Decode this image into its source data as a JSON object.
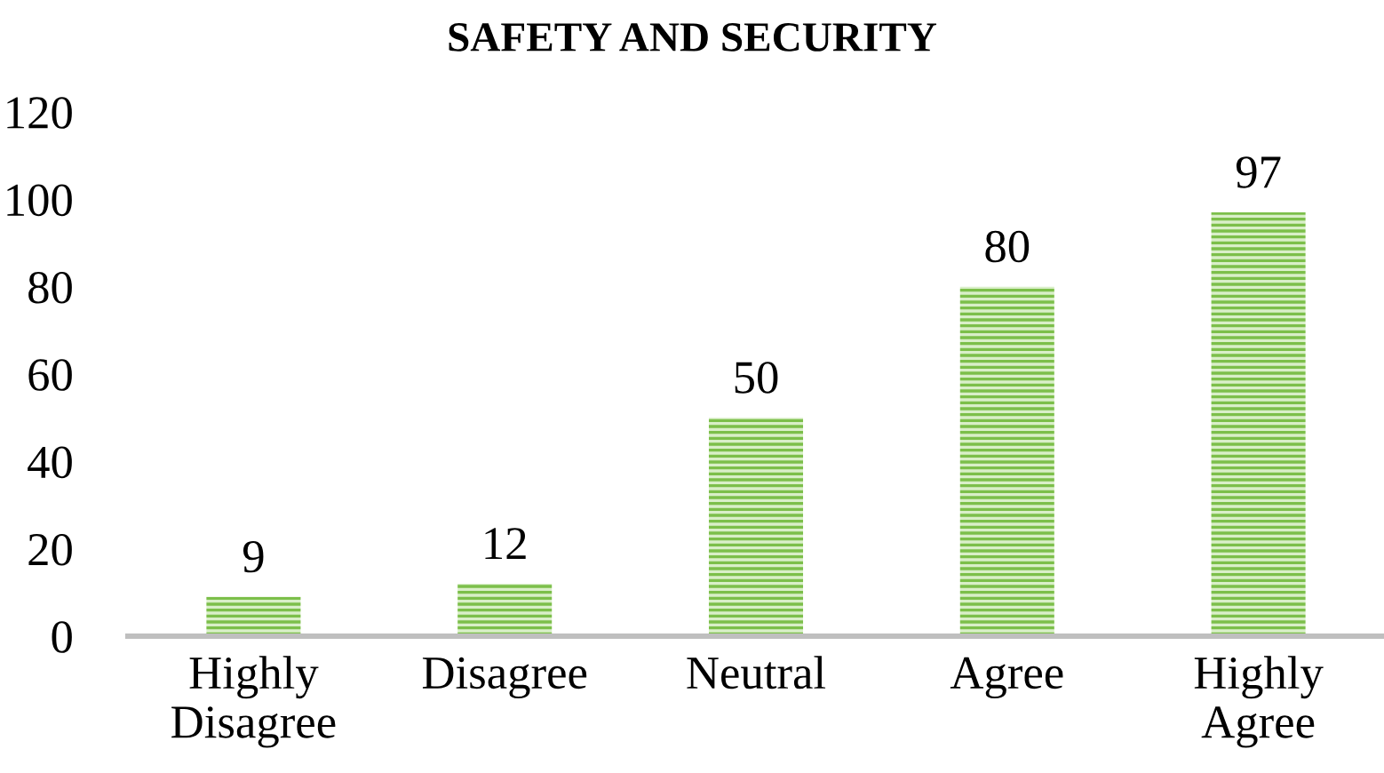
{
  "chart_data": {
    "type": "bar",
    "title": "SAFETY AND SECURITY",
    "categories": [
      "Highly\nDisagree",
      "Disagree",
      "Neutral",
      "Agree",
      "Highly\nAgree"
    ],
    "values": [
      9,
      12,
      50,
      80,
      97
    ],
    "color": "#7cbf4a",
    "ylim": [
      0,
      120
    ],
    "yticks": [
      0,
      20,
      40,
      60,
      80,
      100,
      120
    ],
    "data_labels": true,
    "grid": false,
    "legend": false
  }
}
